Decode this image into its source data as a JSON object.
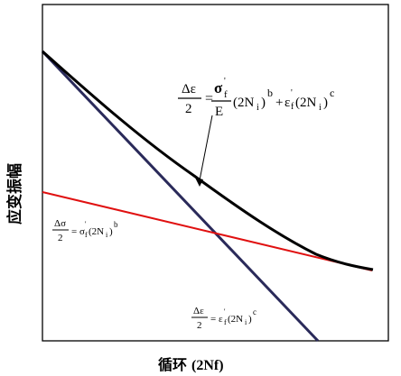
{
  "axes": {
    "ylabel": "应变振幅",
    "xlabel_cn": "循环",
    "xlabel_sym": "(2Nf)"
  },
  "equations": {
    "total": {
      "lhs_num": "Δε",
      "lhs_den": "2",
      "eq": "=",
      "frac_num": "σ",
      "frac_num_sub": "f",
      "frac_num_prime": "'",
      "frac_den": "E",
      "term1": "(2N",
      "term1_sub": "i",
      "term1_close": ")",
      "term1_exp": "b",
      "plus": "+",
      "eps": "ε",
      "eps_sub": "f",
      "eps_prime": "'",
      "term2": "(2N",
      "term2_sub": "i",
      "term2_close": ")",
      "term2_exp": "c"
    },
    "elastic": {
      "lhs_num": "Δσ",
      "lhs_den": "2",
      "eq": "=",
      "sigma": "σ",
      "sigma_sub": "f",
      "prime": "'",
      "term": "(2N",
      "term_sub": "i",
      "term_close": ")",
      "exp": "b"
    },
    "plastic": {
      "lhs_num": "Δε",
      "lhs_den": "2",
      "eq": "=",
      "eps": "ε",
      "eps_sub": "f",
      "prime": "'",
      "term": "(2N",
      "term_sub": "i",
      "term_close": ")",
      "exp": "c"
    }
  },
  "colors": {
    "total_curve": "#000000",
    "elastic_line": "#e01010",
    "plastic_line": "#2a2a5a",
    "frame": "#000000"
  }
}
